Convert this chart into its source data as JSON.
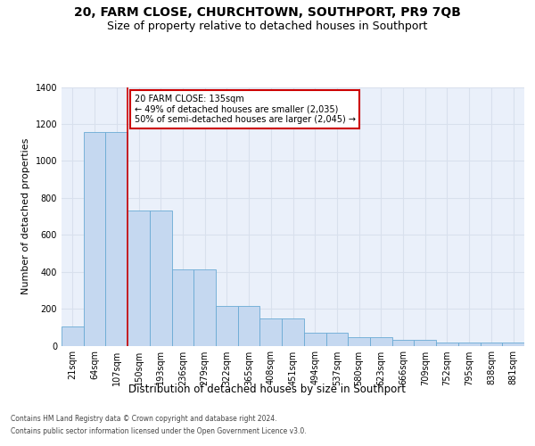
{
  "title": "20, FARM CLOSE, CHURCHTOWN, SOUTHPORT, PR9 7QB",
  "subtitle": "Size of property relative to detached houses in Southport",
  "xlabel": "Distribution of detached houses by size in Southport",
  "ylabel": "Number of detached properties",
  "footnote1": "Contains HM Land Registry data © Crown copyright and database right 2024.",
  "footnote2": "Contains public sector information licensed under the Open Government Licence v3.0.",
  "categories": [
    "21sqm",
    "64sqm",
    "107sqm",
    "150sqm",
    "193sqm",
    "236sqm",
    "279sqm",
    "322sqm",
    "365sqm",
    "408sqm",
    "451sqm",
    "494sqm",
    "537sqm",
    "580sqm",
    "623sqm",
    "666sqm",
    "709sqm",
    "752sqm",
    "795sqm",
    "838sqm",
    "881sqm"
  ],
  "bar_heights": [
    105,
    1155,
    1155,
    730,
    730,
    415,
    415,
    215,
    215,
    148,
    148,
    70,
    70,
    48,
    48,
    30,
    30,
    18,
    18,
    15,
    15
  ],
  "bar_color": "#c5d8f0",
  "bar_edge_color": "#6aaad4",
  "vline_color": "#cc0000",
  "vline_x": 3,
  "ann_box_edgecolor": "#cc0000",
  "property_label": "20 FARM CLOSE: 135sqm",
  "annotation_line1": "← 49% of detached houses are smaller (2,035)",
  "annotation_line2": "50% of semi-detached houses are larger (2,045) →",
  "ylim": [
    0,
    1400
  ],
  "yticks": [
    0,
    200,
    400,
    600,
    800,
    1000,
    1200,
    1400
  ],
  "bg_color": "#eaf0fa",
  "grid_color": "#d8e0ed",
  "title_fontsize": 10,
  "subtitle_fontsize": 9,
  "tick_fontsize": 7,
  "ylabel_fontsize": 8,
  "xlabel_fontsize": 8.5,
  "ann_fontsize": 7,
  "footnote_fontsize": 5.5
}
